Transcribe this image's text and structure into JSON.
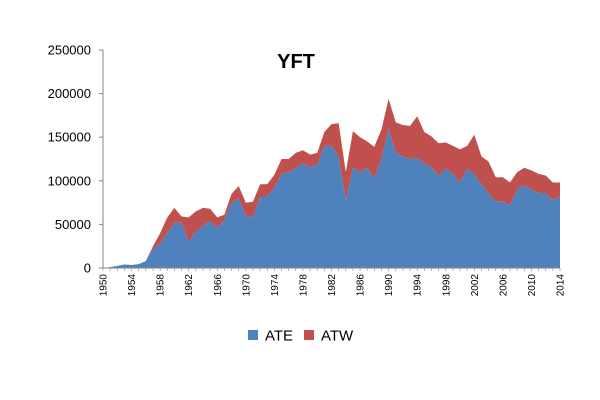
{
  "chart_data": {
    "type": "area",
    "stacked": true,
    "title": "YFT",
    "xlabel": "",
    "ylabel": "",
    "ylim": [
      0,
      250000
    ],
    "yticks": [
      0,
      50000,
      100000,
      150000,
      200000,
      250000
    ],
    "ytick_labels": [
      "0",
      "50000",
      "100000",
      "150000",
      "200000",
      "250000"
    ],
    "xlim": [
      1950,
      2014
    ],
    "xticks": [
      1950,
      1954,
      1958,
      1962,
      1966,
      1970,
      1974,
      1978,
      1982,
      1986,
      1990,
      1994,
      1998,
      2002,
      2006,
      2010,
      2014
    ],
    "xtick_labels": [
      "1950",
      "1954",
      "1958",
      "1962",
      "1966",
      "1970",
      "1974",
      "1978",
      "1982",
      "1986",
      "1990",
      "1994",
      "1998",
      "2002",
      "2006",
      "2010",
      "2014"
    ],
    "grid": false,
    "legend_position": "bottom",
    "x": [
      1950,
      1951,
      1952,
      1953,
      1954,
      1955,
      1956,
      1957,
      1958,
      1959,
      1960,
      1961,
      1962,
      1963,
      1964,
      1965,
      1966,
      1967,
      1968,
      1969,
      1970,
      1971,
      1972,
      1973,
      1974,
      1975,
      1976,
      1977,
      1978,
      1979,
      1980,
      1981,
      1982,
      1983,
      1984,
      1985,
      1986,
      1987,
      1988,
      1989,
      1990,
      1991,
      1992,
      1993,
      1994,
      1995,
      1996,
      1997,
      1998,
      1999,
      2000,
      2001,
      2002,
      2003,
      2004,
      2005,
      2006,
      2007,
      2008,
      2009,
      2010,
      2011,
      2012,
      2013,
      2014
    ],
    "series": [
      {
        "name": "ATE",
        "color": "#4f81bd",
        "values": [
          0,
          1000,
          2500,
          4000,
          3500,
          4500,
          8000,
          22000,
          28000,
          40000,
          52000,
          52000,
          30000,
          42000,
          48000,
          54000,
          46000,
          55000,
          75000,
          80000,
          60000,
          58000,
          82000,
          82000,
          92000,
          108000,
          110000,
          115000,
          120000,
          116000,
          118000,
          140000,
          140000,
          128000,
          78000,
          115000,
          110000,
          115000,
          103000,
          125000,
          160000,
          132000,
          128000,
          125000,
          126000,
          120000,
          116000,
          106000,
          114000,
          108000,
          98000,
          114000,
          108000,
          96000,
          86000,
          76000,
          76000,
          72000,
          90000,
          95000,
          90000,
          86000,
          86000,
          78000,
          82000
        ]
      },
      {
        "name": "ATW",
        "color": "#c0504d",
        "values": [
          0,
          0,
          0,
          0,
          0,
          0,
          0,
          3000,
          12000,
          18000,
          17000,
          7000,
          28000,
          23000,
          21000,
          14000,
          12000,
          6000,
          10000,
          14000,
          15000,
          18000,
          14000,
          14000,
          15000,
          17000,
          15000,
          17000,
          15000,
          14000,
          14000,
          16000,
          25000,
          38000,
          32000,
          42000,
          40000,
          30000,
          36000,
          34000,
          34000,
          35000,
          36000,
          38000,
          48000,
          36000,
          35000,
          37000,
          30000,
          32000,
          38000,
          26000,
          45000,
          32000,
          36000,
          28000,
          28000,
          26000,
          20000,
          20000,
          22000,
          22000,
          20000,
          20000,
          16000
        ]
      }
    ]
  }
}
